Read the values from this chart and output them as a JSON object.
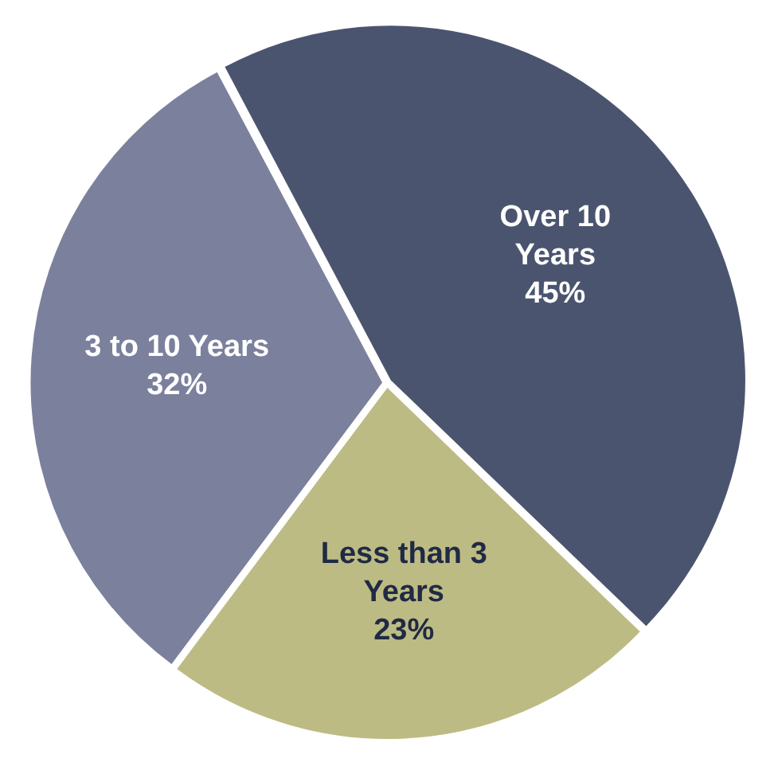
{
  "chart_data": {
    "type": "pie",
    "categories": [
      "Over 10 Years",
      "Less than 3 Years",
      "3 to 10 Years"
    ],
    "values": [
      45,
      23,
      32
    ],
    "value_labels": [
      "45%",
      "23%",
      "32%"
    ],
    "colors": [
      "#4b546f",
      "#bdbb84",
      "#7b809d"
    ],
    "legend": false
  }
}
